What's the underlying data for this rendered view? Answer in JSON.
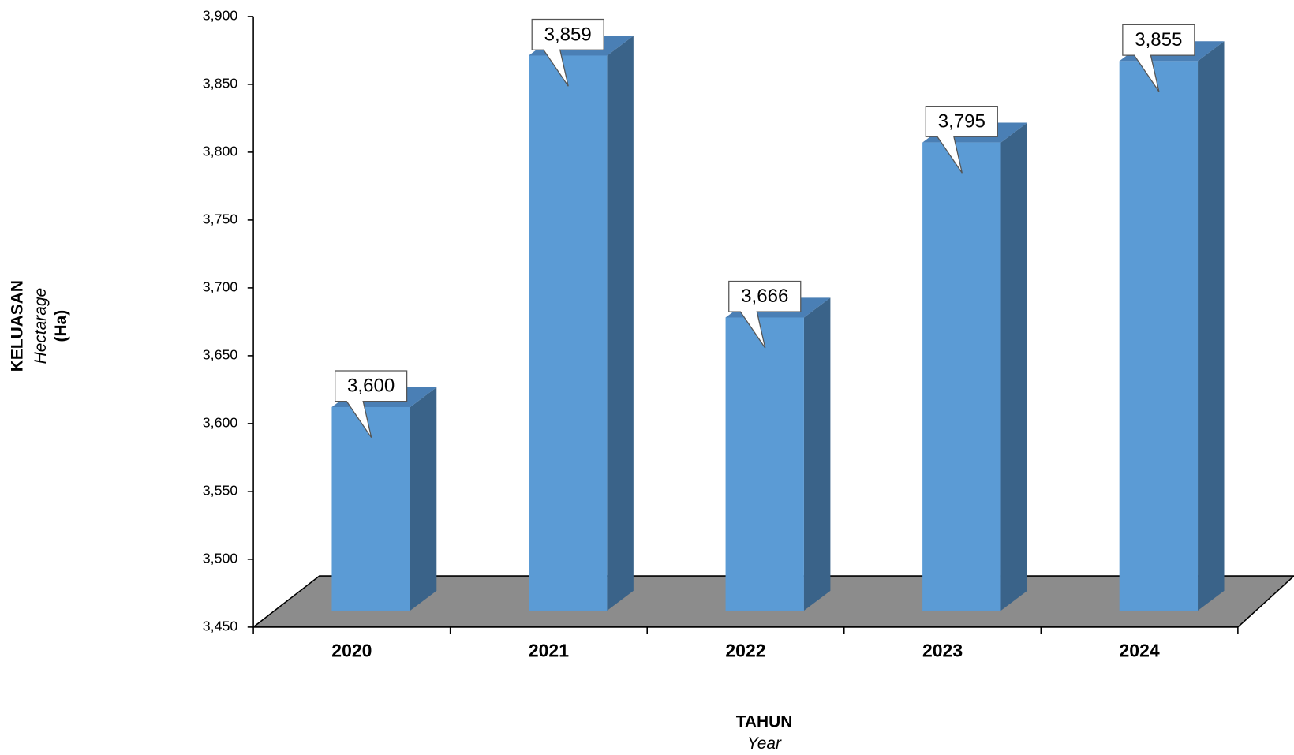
{
  "chart_data": {
    "type": "bar3d",
    "x_label": "TAHUN",
    "x_label_sub": "Year",
    "y_label": "KELUASAN",
    "y_label_sub": "Hectarage",
    "y_label_unit": "(Ha)",
    "categories": [
      "2020",
      "2021",
      "2022",
      "2023",
      "2024"
    ],
    "values": [
      3600,
      3859,
      3666,
      3795,
      3855
    ],
    "value_labels": [
      "3,600",
      "3,859",
      "3,666",
      "3,795",
      "3,855"
    ],
    "color": "#5b9bd5",
    "ylim": [
      3450,
      3900
    ],
    "yticks": [
      {
        "value": 3450,
        "label": "3,450"
      },
      {
        "value": 3500,
        "label": "3,500"
      },
      {
        "value": 3550,
        "label": "3,550"
      },
      {
        "value": 3600,
        "label": "3,600"
      },
      {
        "value": 3650,
        "label": "3,650"
      },
      {
        "value": 3700,
        "label": "3,700"
      },
      {
        "value": 3750,
        "label": "3,750"
      },
      {
        "value": 3800,
        "label": "3,800"
      },
      {
        "value": 3850,
        "label": "3,850"
      },
      {
        "value": 3900,
        "label": "3,900"
      }
    ]
  }
}
